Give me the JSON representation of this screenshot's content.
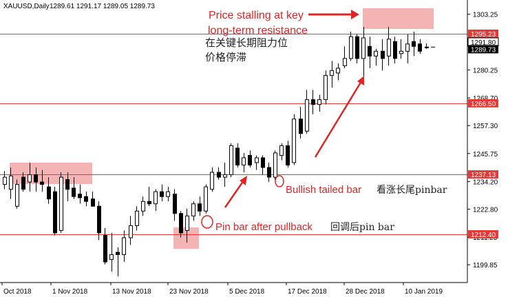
{
  "chart_data": {
    "type": "candlestick",
    "symbol_label": "XAUUSD,Daily",
    "ohlc_label": "1289.61 1291.17 1289.05 1289.73",
    "y_range": [
      1192.5,
      1308.0
    ],
    "y_ticks": [
      "1303.25",
      "1291.80",
      "1280.25",
      "1268.70",
      "1257.30",
      "1245.75",
      "1234.20",
      "1222.80",
      "1211.25",
      "1199.85"
    ],
    "x_ticks": [
      "Oct 2018",
      "1 Nov 2018",
      "13 Nov 2018",
      "23 Nov 2018",
      "5 Dec 2018",
      "17 Dec 2018",
      "28 Dec 2018",
      "10 Jan 2019"
    ],
    "levels": [
      {
        "price": 1295.23,
        "label": "1295.23"
      },
      {
        "price": 1266.5,
        "label": "1266.50"
      },
      {
        "price": 1237.13,
        "label": "1237.13"
      },
      {
        "price": 1212.4,
        "label": "1212.40"
      }
    ],
    "current_price_label": "1289.73",
    "upper_tick_label": "1291.80",
    "candles": [
      [
        1233.0,
        1238.5,
        1231.0,
        1236.0
      ],
      [
        1231.0,
        1240.0,
        1227.0,
        1236.5
      ],
      [
        1224.0,
        1235.0,
        1223.0,
        1233.0
      ],
      [
        1236.0,
        1238.0,
        1230.0,
        1231.0
      ],
      [
        1234.0,
        1242.0,
        1230.0,
        1237.0
      ],
      [
        1237.0,
        1240.0,
        1230.0,
        1234.0
      ],
      [
        1234.0,
        1239.0,
        1230.0,
        1233.0
      ],
      [
        1232.0,
        1236.0,
        1225.0,
        1227.0
      ],
      [
        1230.0,
        1232.0,
        1212.0,
        1213.0
      ],
      [
        1214.0,
        1238.0,
        1213.0,
        1236.0
      ],
      [
        1235.0,
        1238.0,
        1226.0,
        1231.0
      ],
      [
        1231.5,
        1236.0,
        1227.0,
        1228.0
      ],
      [
        1229.0,
        1233.0,
        1225.0,
        1227.5
      ],
      [
        1228.0,
        1230.0,
        1224.0,
        1226.0
      ],
      [
        1227.0,
        1230.0,
        1224.0,
        1224.0
      ],
      [
        1224.0,
        1226.0,
        1210.0,
        1213.0
      ],
      [
        1212.0,
        1215.0,
        1200.0,
        1201.0
      ],
      [
        1202.0,
        1213.0,
        1197.0,
        1204.0
      ],
      [
        1205.0,
        1207.0,
        1195.0,
        1204.0
      ],
      [
        1204.0,
        1214.0,
        1201.0,
        1211.0
      ],
      [
        1211.0,
        1220.0,
        1208.0,
        1216.0
      ],
      [
        1216.0,
        1224.0,
        1214.0,
        1222.0
      ],
      [
        1222.0,
        1228.0,
        1220.0,
        1226.0
      ],
      [
        1226.0,
        1232.0,
        1224.0,
        1225.0
      ],
      [
        1225.0,
        1231.0,
        1222.0,
        1230.0
      ],
      [
        1230.0,
        1233.0,
        1226.0,
        1228.0
      ],
      [
        1228.0,
        1232.0,
        1226.0,
        1230.0
      ],
      [
        1229.0,
        1231.0,
        1218.0,
        1221.0
      ],
      [
        1221.0,
        1222.0,
        1211.0,
        1213.0
      ],
      [
        1214.0,
        1223.0,
        1209.0,
        1220.0
      ],
      [
        1220.0,
        1226.0,
        1218.0,
        1225.0
      ],
      [
        1225.0,
        1228.0,
        1220.0,
        1222.0
      ],
      [
        1222.0,
        1233.0,
        1221.0,
        1232.0
      ],
      [
        1231.0,
        1240.0,
        1230.0,
        1238.0
      ],
      [
        1238.0,
        1240.0,
        1235.0,
        1236.0
      ],
      [
        1236.0,
        1242.0,
        1232.0,
        1237.0
      ],
      [
        1237.0,
        1250.0,
        1236.0,
        1249.0
      ],
      [
        1248.0,
        1250.0,
        1240.0,
        1241.0
      ],
      [
        1241.0,
        1246.0,
        1238.0,
        1244.0
      ],
      [
        1245.0,
        1247.0,
        1240.0,
        1241.0
      ],
      [
        1242.0,
        1245.0,
        1239.0,
        1244.0
      ],
      [
        1244.0,
        1245.0,
        1237.0,
        1240.0
      ],
      [
        1240.0,
        1242.0,
        1234.0,
        1236.0
      ],
      [
        1236.0,
        1247.0,
        1235.0,
        1246.0
      ],
      [
        1245.0,
        1250.0,
        1243.0,
        1249.0
      ],
      [
        1249.0,
        1251.0,
        1240.0,
        1241.0
      ],
      [
        1242.0,
        1262.0,
        1241.0,
        1260.0
      ],
      [
        1260.0,
        1265.0,
        1252.0,
        1254.0
      ],
      [
        1255.0,
        1272.0,
        1254.0,
        1268.0
      ],
      [
        1268.0,
        1272.0,
        1262.0,
        1266.0
      ],
      [
        1266.0,
        1270.0,
        1263.0,
        1268.0
      ],
      [
        1268.0,
        1280.0,
        1266.0,
        1278.0
      ],
      [
        1278.0,
        1284.0,
        1273.0,
        1280.0
      ],
      [
        1279.0,
        1283.0,
        1276.0,
        1281.0
      ],
      [
        1282.0,
        1290.0,
        1281.0,
        1285.0
      ],
      [
        1285.0,
        1296.0,
        1284.0,
        1294.0
      ],
      [
        1294.0,
        1295.0,
        1283.0,
        1285.0
      ],
      [
        1285.0,
        1298.0,
        1277.0,
        1293.5
      ],
      [
        1290.0,
        1294.0,
        1281.0,
        1286.0
      ],
      [
        1286.0,
        1289.0,
        1282.0,
        1288.0
      ],
      [
        1288.0,
        1293.0,
        1280.0,
        1285.0
      ],
      [
        1286.0,
        1298.0,
        1282.0,
        1293.0
      ],
      [
        1292.0,
        1294.0,
        1283.0,
        1285.0
      ],
      [
        1287.0,
        1293.0,
        1285.0,
        1288.0
      ],
      [
        1288.0,
        1295.0,
        1283.0,
        1291.0
      ],
      [
        1292.0,
        1296.0,
        1286.0,
        1290.0
      ],
      [
        1291.0,
        1293.0,
        1287.0,
        1288.0
      ],
      [
        1289.6,
        1291.2,
        1289.0,
        1289.7
      ]
    ]
  },
  "annotations": {
    "resistance_en_line1": "Price stalling at key",
    "resistance_en_line2": "long-term resistance",
    "resistance_cn_line1": "在关键长期阻力位",
    "resistance_cn_line2": "价格停滞",
    "bullish_en": "Bullish tailed bar",
    "bullish_cn": "看涨长尾pinbar",
    "pinbar_en": "Pin bar after pullback",
    "pinbar_cn": "回调后pin bar"
  },
  "colors": {
    "level_line": "#e53935",
    "highlight": "#f4b4b4",
    "annotation_red": "#e02424",
    "candle": "#000000",
    "label_bg": "#e53935",
    "price_label_bg": "#000000"
  }
}
